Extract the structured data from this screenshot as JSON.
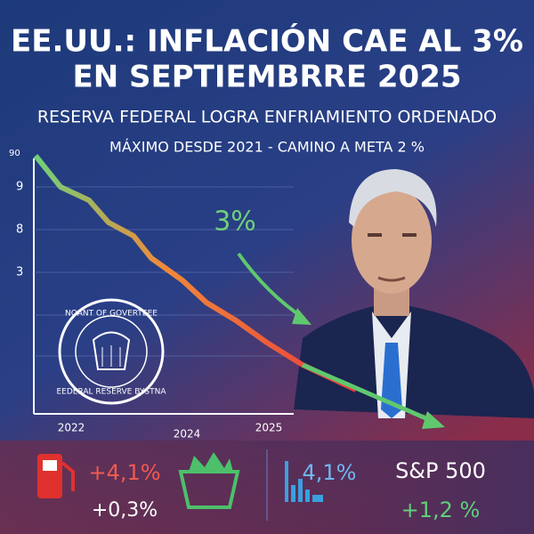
{
  "header": {
    "title": [
      "EE.UU.: INFLACIÓN CAE AL 3%",
      "EN SEPTIEMBRRE 2025"
    ],
    "subtitle": "RESERVA FEDERAL LOGRA ENFRIAMIENTO ORDENADO",
    "tagline": "MÁXIMO DESDE 2021 - CAMINO A META 2 %"
  },
  "chart": {
    "y_labels": [
      "90",
      "9",
      "8",
      "3"
    ],
    "x_labels": [
      "2022",
      "2024",
      "2025"
    ],
    "annotation": "3%"
  },
  "seal": {
    "top": "NOANT OF GOVERTEEE",
    "bottom": "EEDERAL RESERVE BYSTNA"
  },
  "stats": {
    "fuel": [
      "+4,1%",
      "+0,3%"
    ],
    "chart": "4,1%",
    "index": [
      "S&P 500",
      "+1,2 %"
    ]
  }
}
